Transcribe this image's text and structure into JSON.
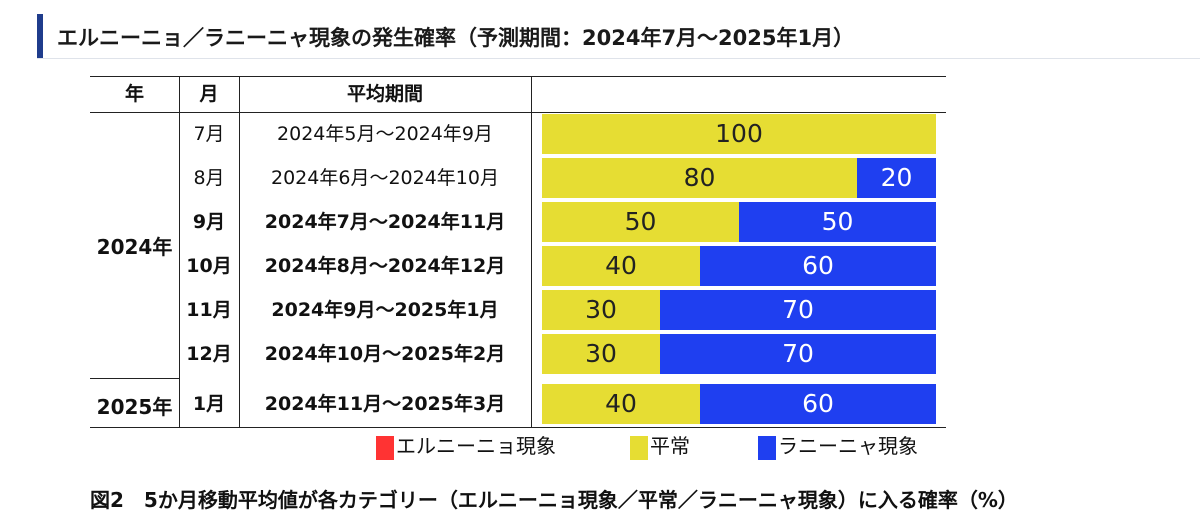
{
  "title": "エルニーニョ／ラニーニャ現象の発生確率（予測期間：2024年7月〜2025年1月）",
  "colors": {
    "accent": "#1f3c8c",
    "el_nino": "#ff3333",
    "normal": "#e6dd33",
    "la_nina": "#1f3ff0"
  },
  "table": {
    "headers": {
      "year": "年",
      "month": "月",
      "period": "平均期間"
    },
    "years": [
      "2024年",
      "2025年"
    ],
    "rows": [
      {
        "month": "7月",
        "period": "2024年5月〜2024年9月",
        "bold": false,
        "normal_label": "100",
        "la_nina_label": ""
      },
      {
        "month": "8月",
        "period": "2024年6月〜2024年10月",
        "bold": false,
        "normal_label": "80",
        "la_nina_label": "20"
      },
      {
        "month": "9月",
        "period": "2024年7月〜2024年11月",
        "bold": true,
        "normal_label": "50",
        "la_nina_label": "50"
      },
      {
        "month": "10月",
        "period": "2024年8月〜2024年12月",
        "bold": true,
        "normal_label": "40",
        "la_nina_label": "60"
      },
      {
        "month": "11月",
        "period": "2024年9月〜2025年1月",
        "bold": true,
        "normal_label": "30",
        "la_nina_label": "70"
      },
      {
        "month": "12月",
        "period": "2024年10月〜2025年2月",
        "bold": true,
        "normal_label": "30",
        "la_nina_label": "70"
      },
      {
        "month": "1月",
        "period": "2024年11月〜2025年3月",
        "bold": true,
        "normal_label": "40",
        "la_nina_label": "60"
      }
    ]
  },
  "chart_data": {
    "type": "bar",
    "stacked": true,
    "orientation": "horizontal",
    "categories": [
      "2024年7月",
      "2024年8月",
      "2024年9月",
      "2024年10月",
      "2024年11月",
      "2024年12月",
      "2025年1月"
    ],
    "series": [
      {
        "name": "エルニーニョ現象",
        "color": "#ff3333",
        "values": [
          0,
          0,
          0,
          0,
          0,
          0,
          0
        ]
      },
      {
        "name": "平常",
        "color": "#e6dd33",
        "values": [
          100,
          80,
          50,
          40,
          30,
          30,
          40
        ]
      },
      {
        "name": "ラニーニャ現象",
        "color": "#1f3ff0",
        "values": [
          0,
          20,
          50,
          60,
          70,
          70,
          60
        ]
      }
    ],
    "xlim": [
      0,
      100
    ]
  },
  "legend": {
    "el_nino": "エルニーニョ現象",
    "normal": "平常",
    "la_nina": "ラニーニャ現象"
  },
  "caption": "図2　5か月移動平均値が各カテゴリー（エルニーニョ現象／平常／ラニーニャ現象）に入る確率（%）"
}
